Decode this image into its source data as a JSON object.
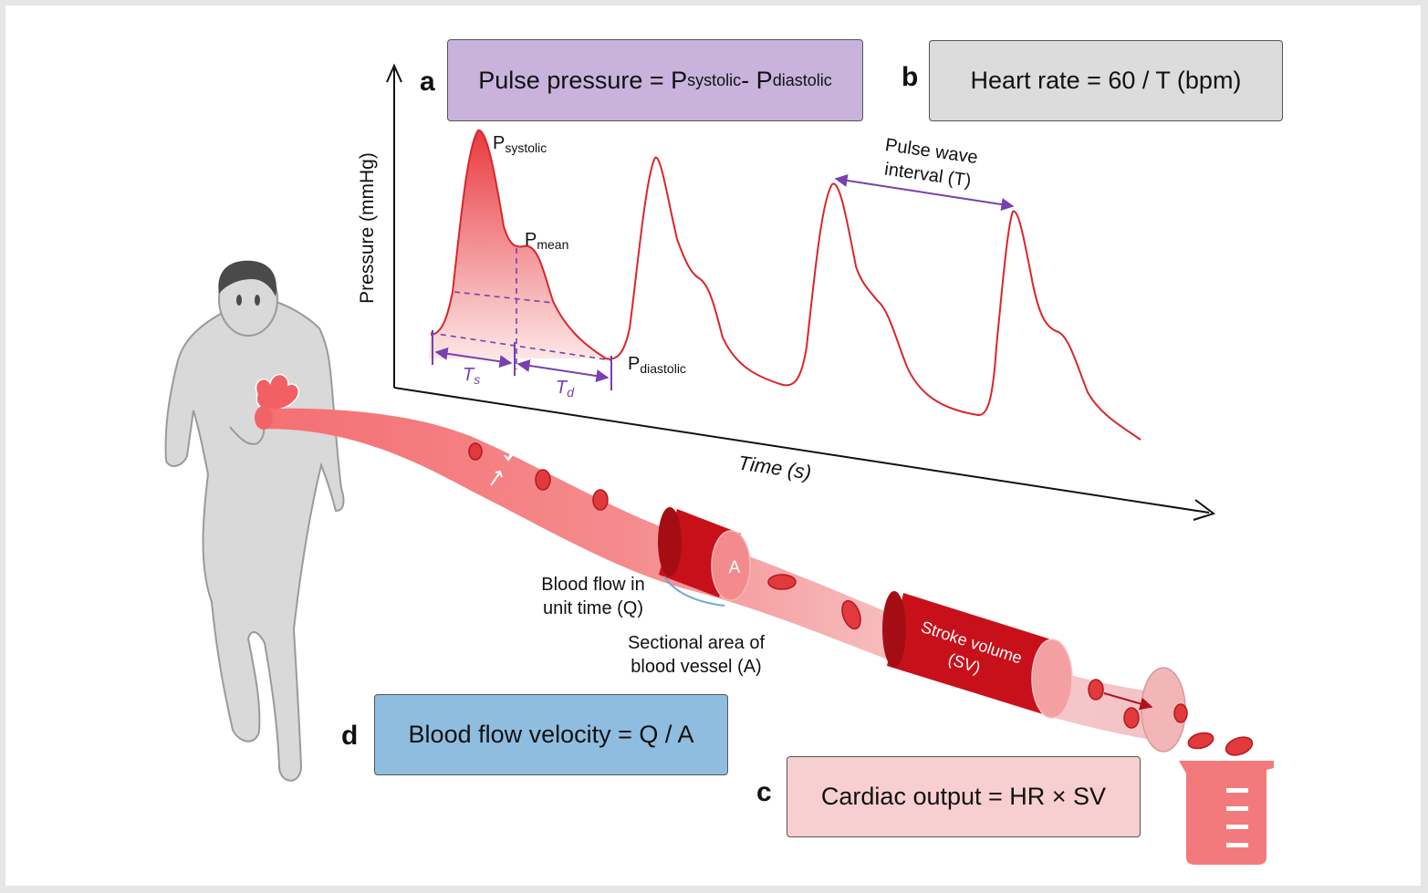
{
  "panels": {
    "a": {
      "letter": "a",
      "formula_lhs": "Pulse pressure = P",
      "formula_sub1": "systolic",
      "formula_mid": " - P",
      "formula_sub2": "diastolic",
      "color": "#c9b3dd"
    },
    "b": {
      "letter": "b",
      "formula": "Heart rate = 60 / T (bpm)",
      "color": "#dcdcdc"
    },
    "c": {
      "letter": "c",
      "formula": "Cardiac output = HR × SV",
      "color": "#f8cfd0"
    },
    "d": {
      "letter": "d",
      "formula": "Blood flow velocity = Q / A",
      "color": "#8fbde0"
    }
  },
  "graph": {
    "y_axis_label": "Pressure (mmHg)",
    "x_axis_label": "Time (s)",
    "p_systolic": {
      "main": "P",
      "sub": "systolic"
    },
    "p_mean": {
      "main": "P",
      "sub": "mean"
    },
    "p_diastolic": {
      "main": "P",
      "sub": "diastolic"
    },
    "ts": {
      "main": "T",
      "sub": "s"
    },
    "td": {
      "main": "T",
      "sub": "d"
    },
    "interval_line1": "Pulse wave",
    "interval_line2": "interval (T)",
    "wave_color": "#d9262b",
    "accent_color": "#7a3fb0"
  },
  "vessel": {
    "area_marker": "A",
    "stroke_volume_line1": "Stroke volume",
    "stroke_volume_line2": "(SV)",
    "flow_label_line1": "Blood flow in",
    "flow_label_line2": "unit time (Q)",
    "area_label_line1": "Sectional area of",
    "area_label_line2": "blood vessel (A)",
    "vessel_color": "#f07c7e",
    "cylinder_color": "#c8101a"
  }
}
